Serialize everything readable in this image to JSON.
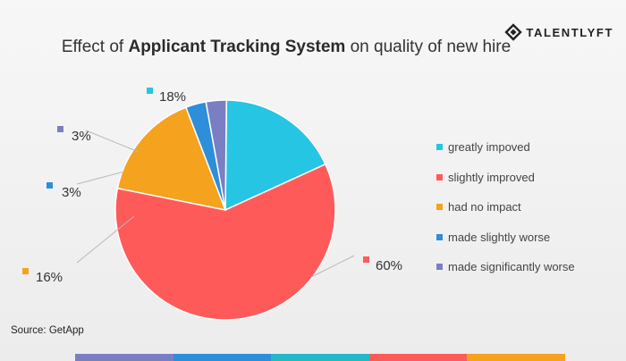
{
  "title": {
    "pre": "Effect of",
    "bold": "Applicant Tracking System",
    "post": "on quality of new hire"
  },
  "logo": {
    "text": "TALENTLYFT",
    "icon": "talentlyft-diamond-icon"
  },
  "source": "Source: GetApp",
  "chart_data": {
    "type": "pie",
    "title": "Effect of Applicant Tracking System on quality of new hire",
    "legend_position": "right",
    "slices": [
      {
        "label": "greatly impoved",
        "value": 18,
        "display": "18%",
        "color": "#25c5e3"
      },
      {
        "label": "slightly improved",
        "value": 60,
        "display": "60%",
        "color": "#ff5a5a"
      },
      {
        "label": "had no impact",
        "value": 16,
        "display": "16%",
        "color": "#f5a21f"
      },
      {
        "label": "made slightly worse",
        "value": 3,
        "display": "3%",
        "color": "#2d8ed9"
      },
      {
        "label": "made significantly worse",
        "value": 3,
        "display": "3%",
        "color": "#7a7fc4"
      }
    ]
  },
  "bottom_stripe_colors": [
    "#7a7fc4",
    "#2d8ed9",
    "#25b8c9",
    "#ff5a5a",
    "#f5a21f"
  ]
}
